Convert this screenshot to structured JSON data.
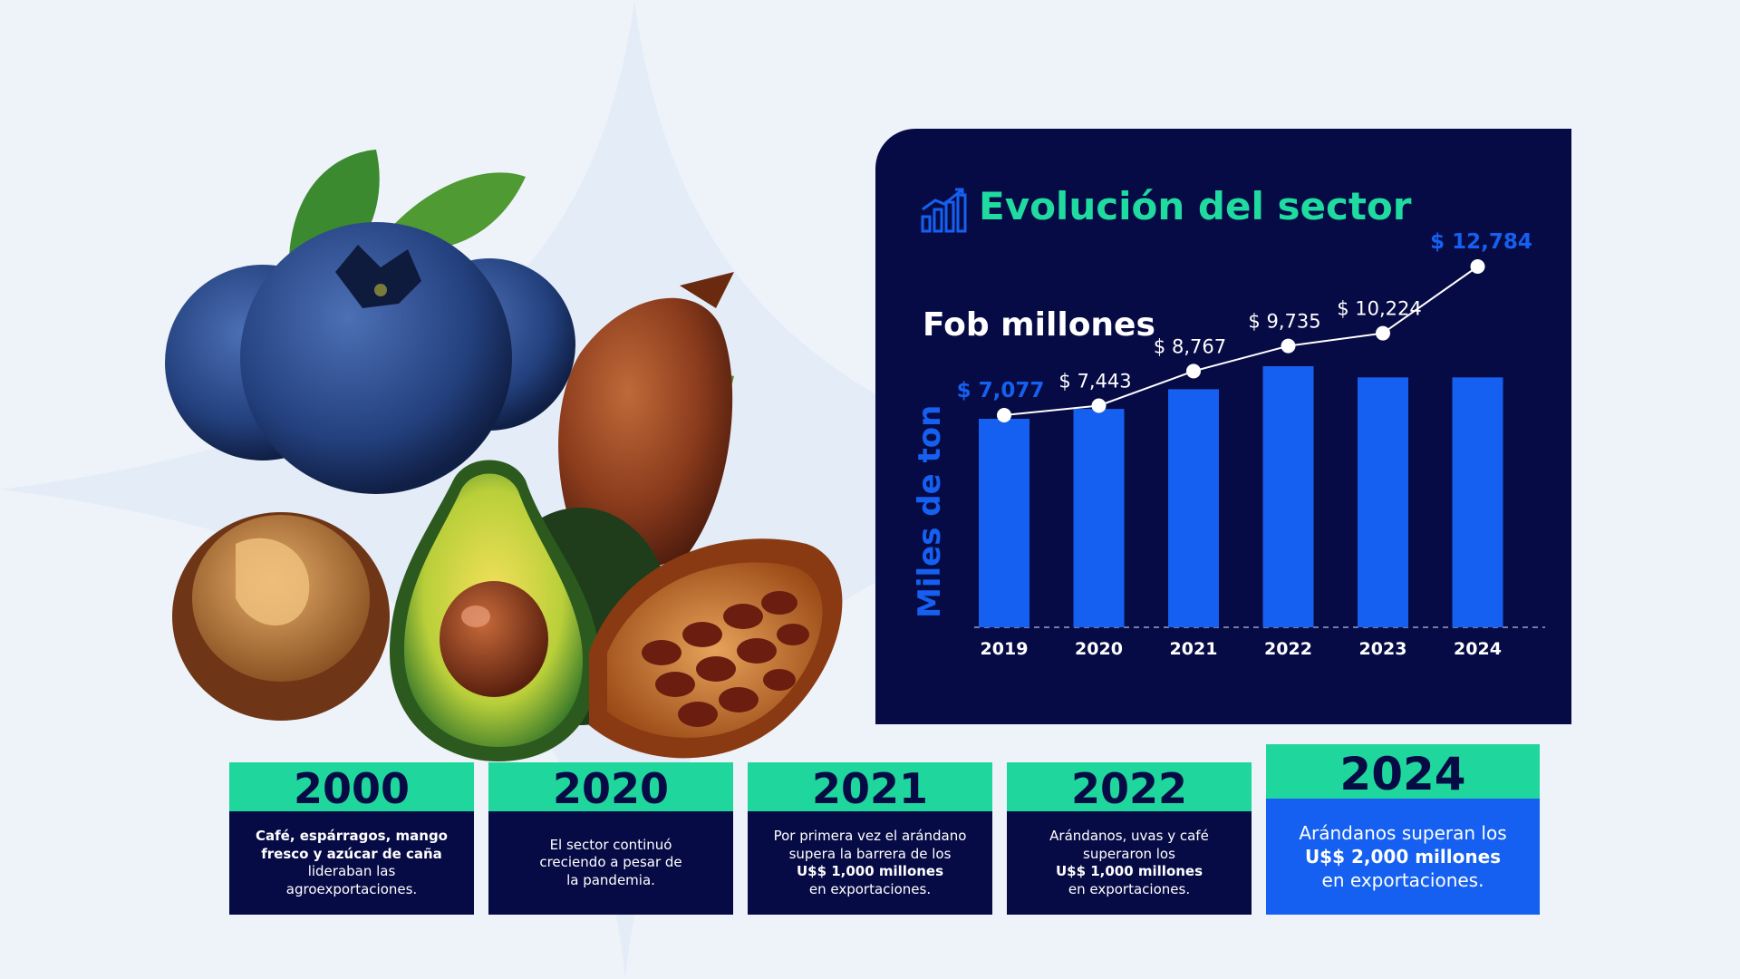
{
  "panel": {
    "title": "Evolución del sector",
    "subtitle": "Fob millones",
    "y_axis_label": "Miles de ton"
  },
  "chart_data": {
    "type": "bar",
    "title": "Evolución del sector",
    "categories": [
      "2019",
      "2020",
      "2021",
      "2022",
      "2023",
      "2024"
    ],
    "series": [
      {
        "name": "Miles de ton",
        "type": "bar",
        "values": [
          3.9,
          4.05,
          4.35,
          4.7,
          4.53,
          4.53
        ]
      },
      {
        "name": "Fob millones",
        "type": "line",
        "values": [
          7077,
          7443,
          8767,
          9735,
          10224,
          12784
        ],
        "labels": [
          "$ 7,077",
          "$ 7,443",
          "$ 8,767",
          "$ 9,735",
          "$ 10,224",
          "$ 12,784"
        ],
        "highlighted": [
          true,
          false,
          false,
          false,
          false,
          true
        ]
      }
    ],
    "ylabel": "Miles de ton",
    "grid": false,
    "baseline": "dashed"
  },
  "timeline": [
    {
      "year": "2000",
      "lines": [
        {
          "text": "Café, espárragos, mango",
          "bold": true
        },
        {
          "text": "fresco y azúcar de caña",
          "bold": true
        },
        {
          "text": "lideraban las",
          "bold": false
        },
        {
          "text": "agroexportaciones.",
          "bold": false
        }
      ]
    },
    {
      "year": "2020",
      "lines": [
        {
          "text": "El sector continuó",
          "bold": false
        },
        {
          "text": "creciendo a pesar de",
          "bold": false
        },
        {
          "text": "la pandemia.",
          "bold": false
        }
      ]
    },
    {
      "year": "2021",
      "lines": [
        {
          "text": "Por primera vez el arándano",
          "bold": false
        },
        {
          "text": "supera la barrera de los",
          "bold": false
        },
        {
          "text": "U$$ 1,000 millones",
          "bold": true
        },
        {
          "text": "en exportaciones.",
          "bold": false
        }
      ]
    },
    {
      "year": "2022",
      "lines": [
        {
          "text": "Arándanos, uvas y café",
          "bold": false
        },
        {
          "text": "superaron los",
          "bold": false
        },
        {
          "text": "U$$ 1,000 millones",
          "bold": true
        },
        {
          "text": "en exportaciones.",
          "bold": false
        }
      ]
    },
    {
      "year": "2024",
      "lines": [
        {
          "text": "Arándanos superan los",
          "bold": false
        },
        {
          "text": "U$$ 2,000 millones",
          "bold": true
        },
        {
          "text": "en exportaciones.",
          "bold": false
        }
      ]
    }
  ],
  "colors": {
    "navy": "#070b45",
    "green": "#1fd69c",
    "blue": "#1560f0",
    "title_green": "#1fdba0"
  },
  "icons": {
    "title": "growth-chart-icon"
  }
}
